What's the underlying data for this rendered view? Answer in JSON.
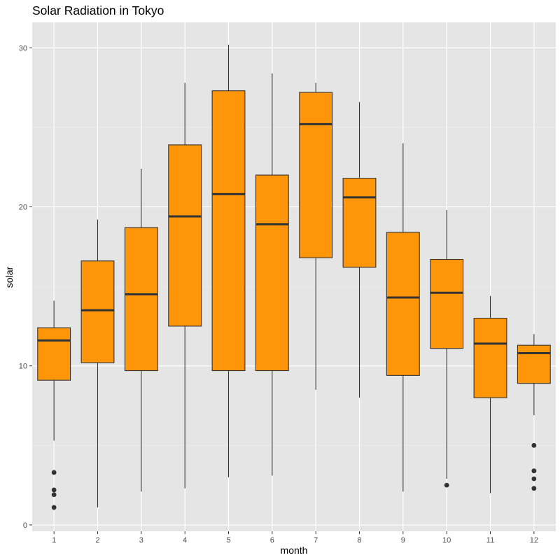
{
  "chart_data": {
    "type": "boxplot",
    "title": "Solar Radiation in Tokyo",
    "xlabel": "month",
    "ylabel": "solar",
    "ylim": [
      -0.4,
      31.6
    ],
    "yticks": [
      0,
      10,
      20,
      30
    ],
    "categories": [
      "1",
      "2",
      "3",
      "4",
      "5",
      "6",
      "7",
      "8",
      "9",
      "10",
      "11",
      "12"
    ],
    "grid": true,
    "background": "#e5e5e5",
    "fill_color": "#ff9609",
    "box_line_color": "#333333",
    "boxes": [
      {
        "month": "1",
        "min": 5.3,
        "q1": 9.1,
        "median": 11.6,
        "q3": 12.4,
        "max": 14.1,
        "outliers": [
          3.3,
          2.2,
          1.9,
          1.1
        ]
      },
      {
        "month": "2",
        "min": 1.1,
        "q1": 10.2,
        "median": 13.5,
        "q3": 16.6,
        "max": 19.2,
        "outliers": []
      },
      {
        "month": "3",
        "min": 2.1,
        "q1": 9.7,
        "median": 14.5,
        "q3": 18.7,
        "max": 22.4,
        "outliers": []
      },
      {
        "month": "4",
        "min": 2.3,
        "q1": 12.5,
        "median": 19.4,
        "q3": 23.9,
        "max": 27.8,
        "outliers": []
      },
      {
        "month": "5",
        "min": 3.0,
        "q1": 9.7,
        "median": 20.8,
        "q3": 27.3,
        "max": 30.2,
        "outliers": []
      },
      {
        "month": "6",
        "min": 3.1,
        "q1": 9.7,
        "median": 18.9,
        "q3": 22.0,
        "max": 28.4,
        "outliers": []
      },
      {
        "month": "7",
        "min": 8.5,
        "q1": 16.8,
        "median": 25.2,
        "q3": 27.2,
        "max": 27.8,
        "outliers": []
      },
      {
        "month": "8",
        "min": 8.0,
        "q1": 16.2,
        "median": 20.6,
        "q3": 21.8,
        "max": 26.6,
        "outliers": []
      },
      {
        "month": "9",
        "min": 2.1,
        "q1": 9.4,
        "median": 14.3,
        "q3": 18.4,
        "max": 24.0,
        "outliers": []
      },
      {
        "month": "10",
        "min": 2.9,
        "q1": 11.1,
        "median": 14.6,
        "q3": 16.7,
        "max": 19.8,
        "outliers": [
          2.5
        ]
      },
      {
        "month": "11",
        "min": 2.0,
        "q1": 8.0,
        "median": 11.4,
        "q3": 13.0,
        "max": 14.4,
        "outliers": []
      },
      {
        "month": "12",
        "min": 6.9,
        "q1": 8.9,
        "median": 10.8,
        "q3": 11.3,
        "max": 12.0,
        "outliers": [
          5.0,
          3.4,
          2.9,
          2.3
        ]
      }
    ]
  }
}
